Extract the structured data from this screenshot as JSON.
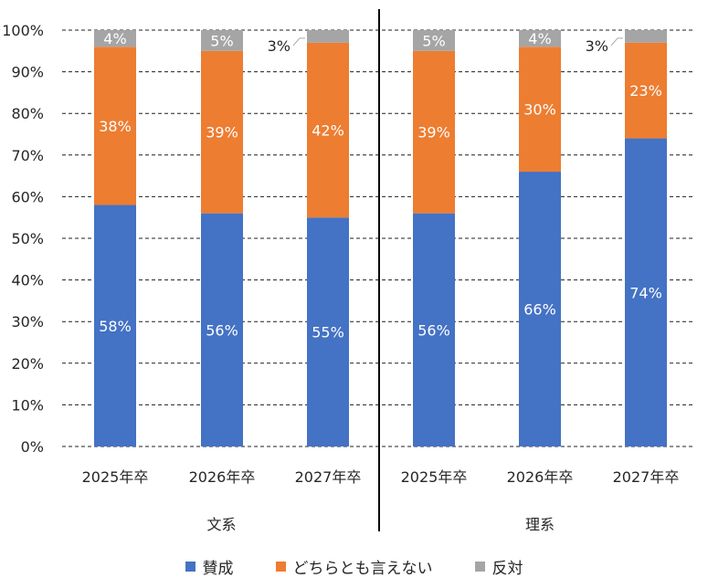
{
  "chart_data": {
    "type": "bar",
    "stacked": true,
    "groups": [
      {
        "name": "文系",
        "categories": [
          "2025年卒",
          "2026年卒",
          "2027年卒"
        ]
      },
      {
        "name": "理系",
        "categories": [
          "2025年卒",
          "2026年卒",
          "2027年卒"
        ]
      }
    ],
    "series": [
      {
        "name": "賛成",
        "color": "#4472C4",
        "values": [
          58,
          56,
          55,
          56,
          66,
          74
        ],
        "labels": [
          "58%",
          "56%",
          "55%",
          "56%",
          "66%",
          "74%"
        ]
      },
      {
        "name": "どちらとも言えない",
        "color": "#ED7D31",
        "values": [
          38,
          39,
          42,
          39,
          30,
          23
        ],
        "labels": [
          "38%",
          "39%",
          "42%",
          "39%",
          "30%",
          "23%"
        ]
      },
      {
        "name": "反対",
        "color": "#A5A5A5",
        "values": [
          4,
          5,
          3,
          5,
          4,
          3
        ],
        "labels": [
          "4%",
          "5%",
          "3%",
          "5%",
          "4%",
          "3%"
        ]
      }
    ],
    "yticks": [
      "0%",
      "10%",
      "20%",
      "30%",
      "40%",
      "50%",
      "60%",
      "70%",
      "80%",
      "90%",
      "100%"
    ],
    "ylim": [
      0,
      100
    ],
    "grid": "dashed horizontal",
    "legend_position": "bottom"
  }
}
